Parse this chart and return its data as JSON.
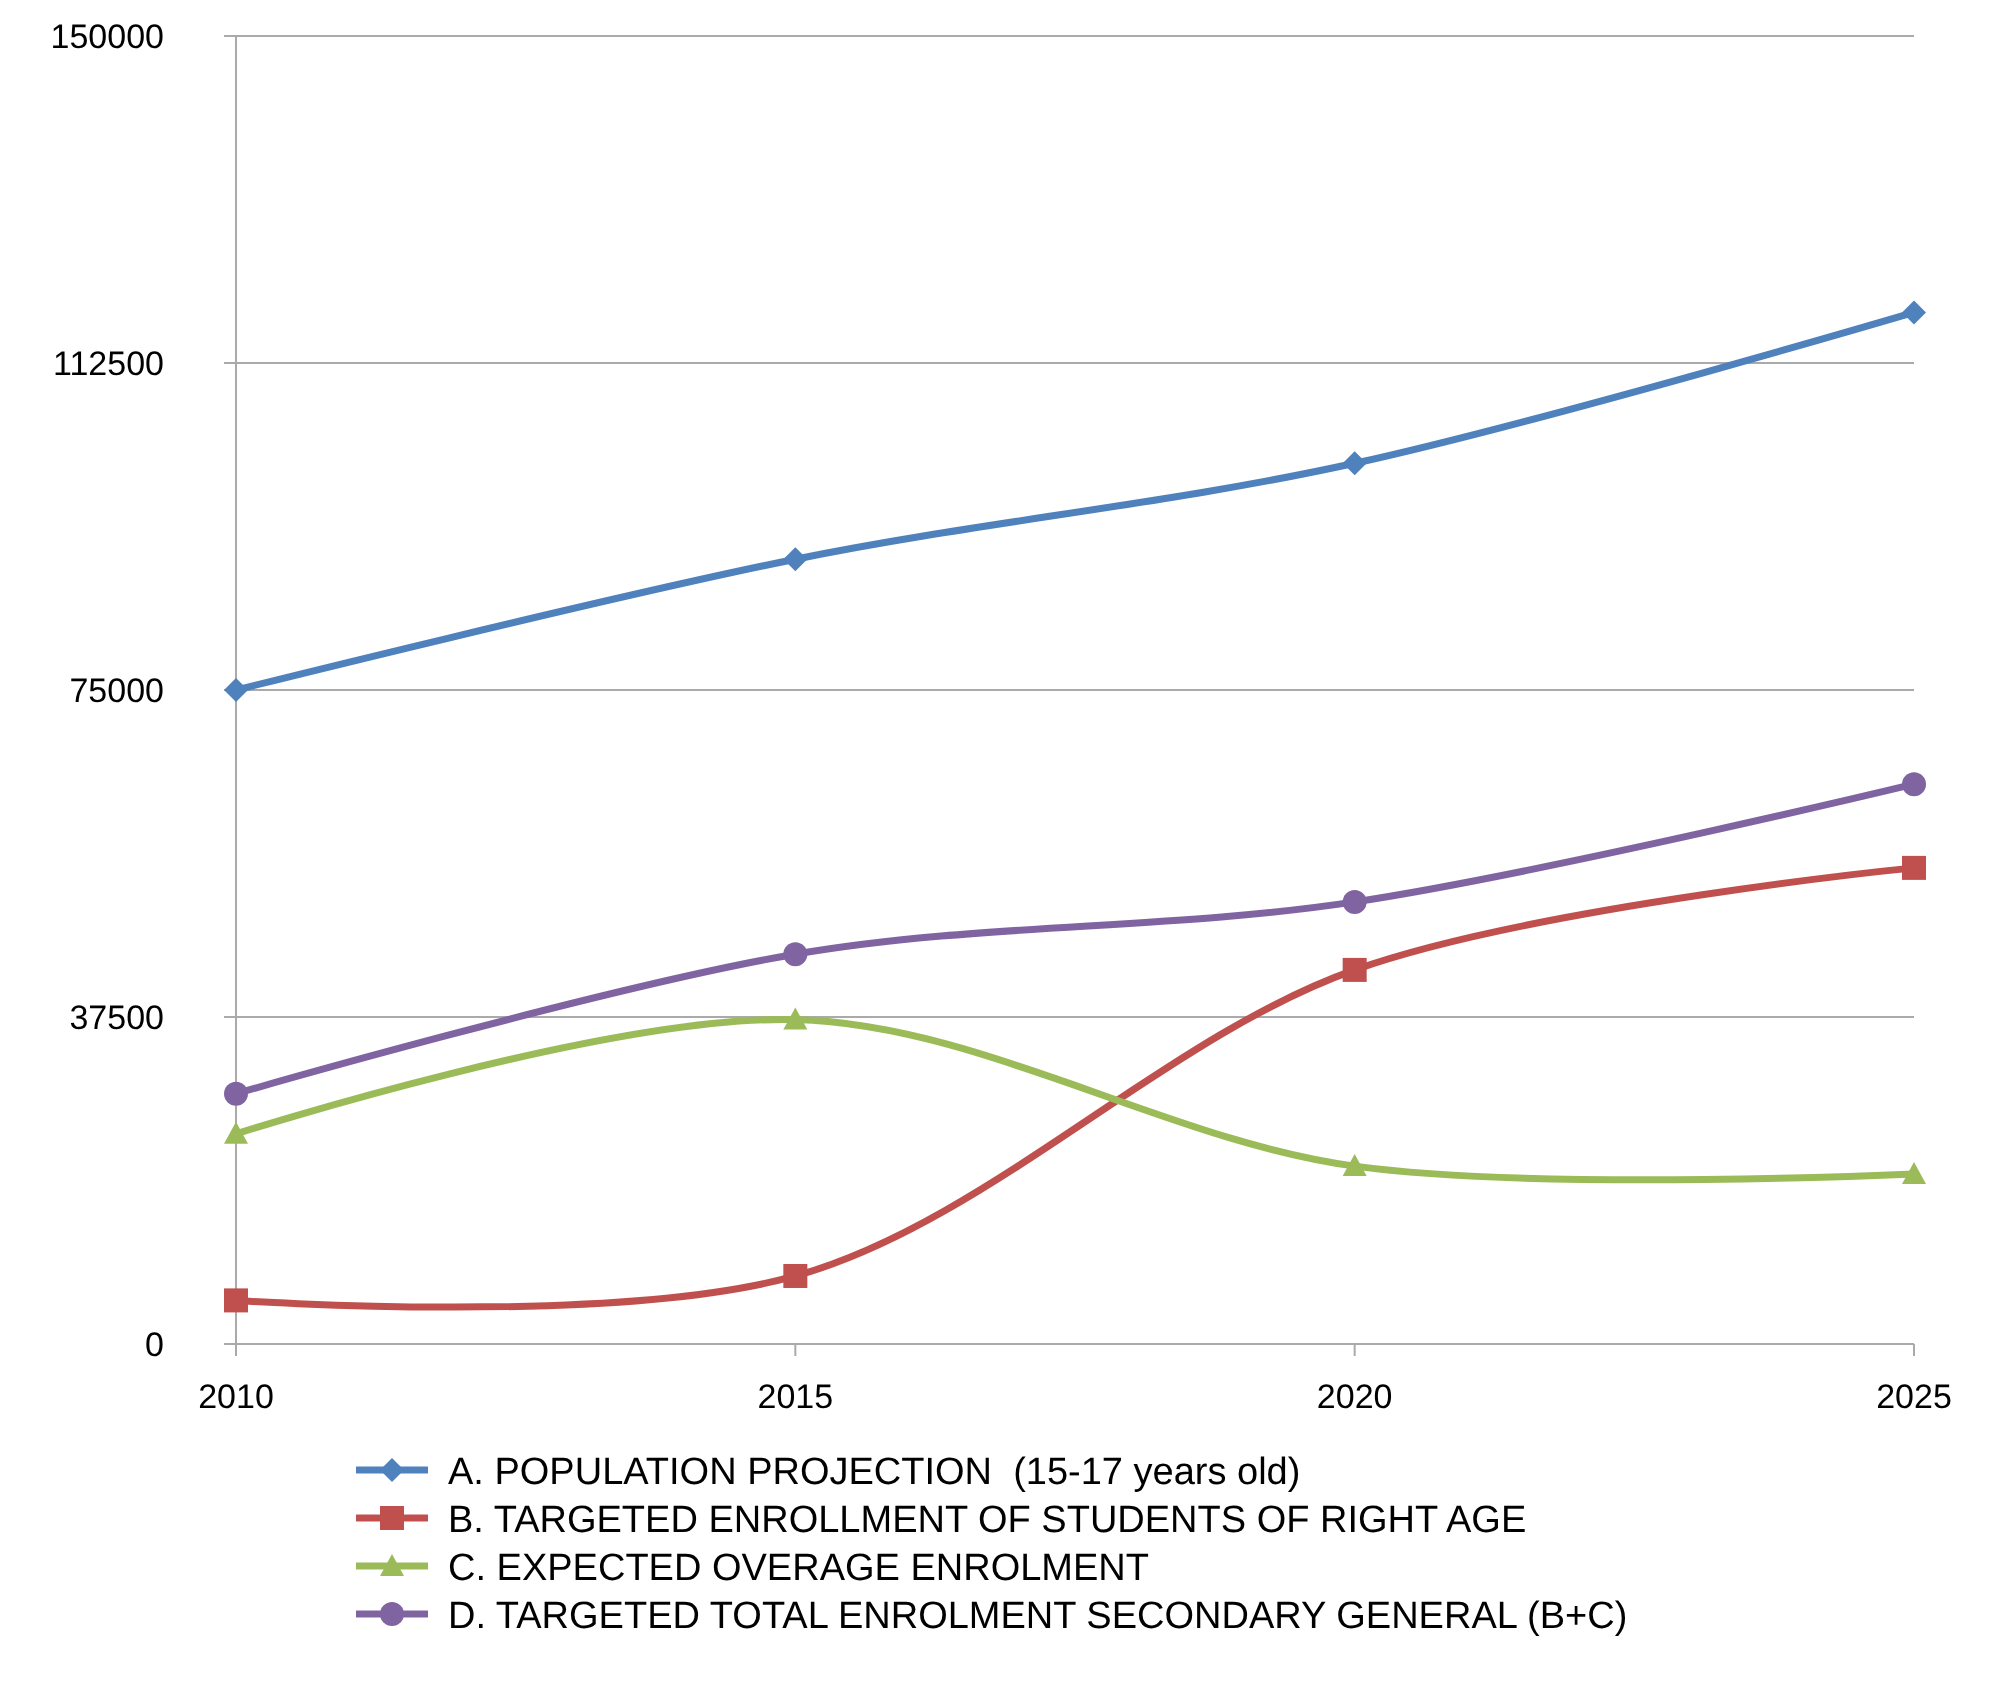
{
  "chart_data": {
    "type": "line",
    "x": [
      2010,
      2015,
      2020,
      2025
    ],
    "xlim": [
      2010,
      2025
    ],
    "xticks": [
      2010,
      2015,
      2020,
      2025
    ],
    "ylim": [
      0,
      150000
    ],
    "yticks": [
      0,
      37500,
      75000,
      112500,
      150000
    ],
    "grid": "y",
    "legend": "bottom",
    "series": [
      {
        "name": "A. POPULATION PROJECTION  (15-17 years old)",
        "color": "#4f81bd",
        "marker": "diamond",
        "values": [
          75000,
          90000,
          101000,
          118300
        ]
      },
      {
        "name": "B. TARGETED ENROLLMENT OF STUDENTS OF RIGHT AGE",
        "color": "#c0504d",
        "marker": "square",
        "values": [
          5000,
          7800,
          42900,
          54600
        ]
      },
      {
        "name": "C. EXPECTED OVERAGE ENROLMENT",
        "color": "#9bbb59",
        "marker": "triangle",
        "values": [
          24100,
          37200,
          20400,
          19500
        ]
      },
      {
        "name": "D. TARGETED TOTAL ENROLMENT SECONDARY GENERAL (B+C)",
        "color": "#8064a2",
        "marker": "circle",
        "values": [
          28700,
          44700,
          50700,
          64200
        ]
      }
    ]
  }
}
